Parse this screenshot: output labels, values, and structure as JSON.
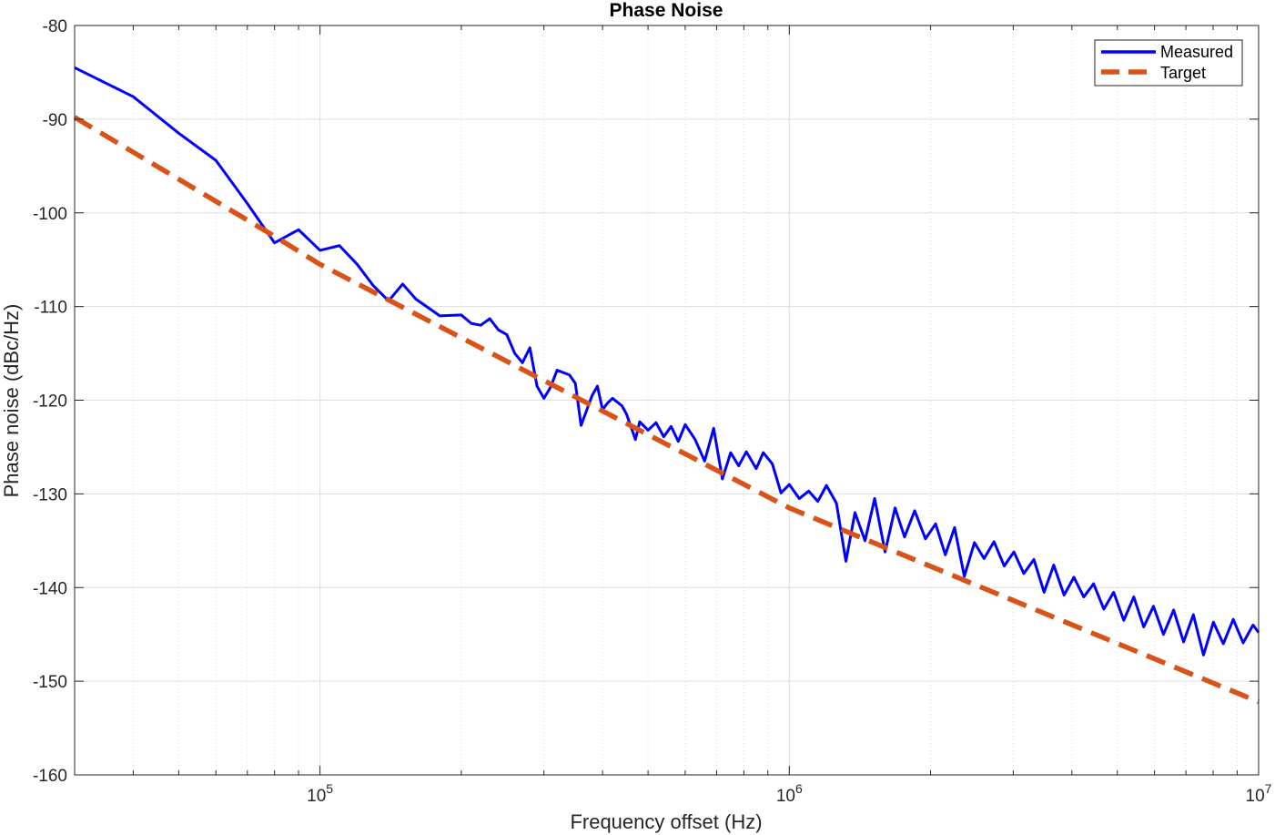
{
  "chart_data": {
    "type": "line",
    "title": "Phase Noise",
    "xlabel": "Frequency offset (Hz)",
    "ylabel": "Phase noise (dBc/Hz)",
    "xscale": "log",
    "xlim": [
      30000,
      10000000
    ],
    "ylim": [
      -160,
      -80
    ],
    "grid": true,
    "legend_position": "top-right",
    "x_ticks": [
      {
        "value": 100000,
        "base": "10",
        "exp": "5"
      },
      {
        "value": 1000000,
        "base": "10",
        "exp": "6"
      },
      {
        "value": 10000000,
        "base": "10",
        "exp": "7"
      }
    ],
    "y_ticks": [
      "-80",
      "-90",
      "-100",
      "-110",
      "-120",
      "-130",
      "-140",
      "-150",
      "-160"
    ],
    "colors": {
      "measured": "#0000ff",
      "target": "#d95319"
    },
    "series": [
      {
        "name": "Measured",
        "style": "solid",
        "points": [
          [
            30000,
            -84.5
          ],
          [
            40000,
            -87.6
          ],
          [
            50000,
            -91.5
          ],
          [
            60000,
            -94.4
          ],
          [
            70000,
            -99.0
          ],
          [
            80000,
            -103.2
          ],
          [
            90000,
            -101.8
          ],
          [
            100000,
            -104.0
          ],
          [
            110000,
            -103.5
          ],
          [
            120000,
            -105.5
          ],
          [
            130000,
            -107.8
          ],
          [
            140000,
            -109.4
          ],
          [
            150000,
            -107.6
          ],
          [
            160000,
            -109.2
          ],
          [
            180000,
            -111.0
          ],
          [
            200000,
            -110.9
          ],
          [
            210000,
            -111.8
          ],
          [
            220000,
            -112.0
          ],
          [
            230000,
            -111.3
          ],
          [
            240000,
            -112.5
          ],
          [
            250000,
            -113.0
          ],
          [
            260000,
            -115.0
          ],
          [
            270000,
            -116.0
          ],
          [
            280000,
            -114.4
          ],
          [
            290000,
            -118.5
          ],
          [
            300000,
            -119.8
          ],
          [
            310000,
            -118.6
          ],
          [
            320000,
            -116.8
          ],
          [
            340000,
            -117.3
          ],
          [
            350000,
            -118.2
          ],
          [
            360000,
            -122.7
          ],
          [
            380000,
            -119.5
          ],
          [
            390000,
            -118.5
          ],
          [
            400000,
            -121.0
          ],
          [
            410000,
            -120.3
          ],
          [
            420000,
            -119.8
          ],
          [
            440000,
            -120.6
          ],
          [
            450000,
            -121.5
          ],
          [
            470000,
            -124.2
          ],
          [
            480000,
            -122.3
          ],
          [
            500000,
            -123.2
          ],
          [
            520000,
            -122.4
          ],
          [
            540000,
            -123.9
          ],
          [
            560000,
            -122.8
          ],
          [
            580000,
            -124.4
          ],
          [
            600000,
            -122.6
          ],
          [
            630000,
            -124.2
          ],
          [
            660000,
            -126.5
          ],
          [
            690000,
            -123.0
          ],
          [
            720000,
            -128.4
          ],
          [
            750000,
            -125.6
          ],
          [
            780000,
            -127.0
          ],
          [
            810000,
            -125.5
          ],
          [
            850000,
            -127.3
          ],
          [
            880000,
            -125.6
          ],
          [
            920000,
            -126.8
          ],
          [
            960000,
            -129.9
          ],
          [
            1000000,
            -129.0
          ],
          [
            1050000,
            -130.5
          ],
          [
            1100000,
            -129.7
          ],
          [
            1150000,
            -130.8
          ],
          [
            1200000,
            -129.1
          ],
          [
            1260000,
            -131.0
          ],
          [
            1320000,
            -137.2
          ],
          [
            1380000,
            -132.0
          ],
          [
            1450000,
            -135.0
          ],
          [
            1520000,
            -130.5
          ],
          [
            1600000,
            -136.2
          ],
          [
            1680000,
            -131.5
          ],
          [
            1760000,
            -134.6
          ],
          [
            1850000,
            -131.8
          ],
          [
            1950000,
            -134.8
          ],
          [
            2050000,
            -133.2
          ],
          [
            2150000,
            -136.5
          ],
          [
            2250000,
            -133.6
          ],
          [
            2360000,
            -138.8
          ],
          [
            2480000,
            -135.2
          ],
          [
            2600000,
            -136.9
          ],
          [
            2730000,
            -135.1
          ],
          [
            2870000,
            -137.7
          ],
          [
            3010000,
            -136.2
          ],
          [
            3160000,
            -138.5
          ],
          [
            3320000,
            -137.0
          ],
          [
            3490000,
            -140.5
          ],
          [
            3660000,
            -137.6
          ],
          [
            3850000,
            -140.8
          ],
          [
            4040000,
            -138.9
          ],
          [
            4240000,
            -141.0
          ],
          [
            4450000,
            -139.6
          ],
          [
            4680000,
            -142.3
          ],
          [
            4910000,
            -140.5
          ],
          [
            5160000,
            -143.5
          ],
          [
            5420000,
            -141.0
          ],
          [
            5690000,
            -144.2
          ],
          [
            5970000,
            -142.0
          ],
          [
            6270000,
            -145.0
          ],
          [
            6590000,
            -142.4
          ],
          [
            6920000,
            -145.8
          ],
          [
            7260000,
            -142.9
          ],
          [
            7630000,
            -147.2
          ],
          [
            8010000,
            -143.7
          ],
          [
            8410000,
            -146.0
          ],
          [
            8830000,
            -143.4
          ],
          [
            9270000,
            -145.9
          ],
          [
            9730000,
            -144.0
          ],
          [
            10000000,
            -144.8
          ]
        ]
      },
      {
        "name": "Target",
        "style": "dashed",
        "points": [
          [
            30000,
            -89.8
          ],
          [
            80000,
            -102.5
          ],
          [
            100000,
            -105.5
          ],
          [
            1000000,
            -131.5
          ],
          [
            10000000,
            -152.2
          ]
        ]
      }
    ]
  }
}
